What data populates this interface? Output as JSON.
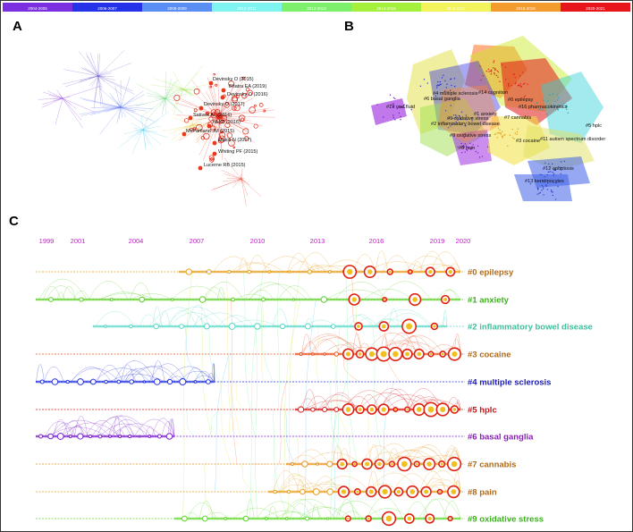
{
  "panels": {
    "a": "A",
    "b": "B",
    "c": "C"
  },
  "legend_bar": [
    {
      "label": "2004-2006",
      "color": "#7b2fe0"
    },
    {
      "label": "2006-2007",
      "color": "#2433e8"
    },
    {
      "label": "2008-2009",
      "color": "#5b8ef2"
    },
    {
      "label": "2010-2011",
      "color": "#7ff3f0"
    },
    {
      "label": "2012-2013",
      "color": "#7cf06a"
    },
    {
      "label": "2014-2015",
      "color": "#a5f03c"
    },
    {
      "label": "2016-2017",
      "color": "#f3f35c"
    },
    {
      "label": "2018-2019",
      "color": "#f39b2c"
    },
    {
      "label": "2020-2021",
      "color": "#e8151b"
    }
  ],
  "network_a": {
    "node_labels": [
      "Devinsky O (2015)",
      "Bhatra EA (2019)",
      "Devinsky O (2016)",
      "Devinsky O (2017)",
      "Sativex AL (2016)",
      "NHCI (2016)",
      "McPartland JM (2015)",
      "Maioli N (2017)",
      "Whiting PF (2015)",
      "Lucerne RB (2015)"
    ]
  },
  "network_b": {
    "clusters": [
      "#0 epilepsy",
      "#1 anxiety",
      "#2 inflammatory bowel disease",
      "#3 cocaine",
      "#4 multiple sclerosis",
      "#5 hplc",
      "#6 basal ganglia",
      "#7 cannabis",
      "#8 pain",
      "#9 oxidative stress",
      "#10 gpr55",
      "#11 autism spectrum disorder",
      "#12 apoptosis",
      "#13 keratinocytes",
      "#14 cognition",
      "#16 pharmacokinetics",
      "#17 oral fluid"
    ]
  },
  "chart_data": {
    "type": "timeline",
    "title": "",
    "years": [
      "1999",
      "2001",
      "2004",
      "2007",
      "2010",
      "2013",
      "2016",
      "2019",
      "2020"
    ],
    "clusters": [
      {
        "label": "#0 epilepsy",
        "color": "#b06a1a",
        "start": 1999,
        "end": 2020
      },
      {
        "label": "#1 anxiety",
        "color": "#3bb31d",
        "start": 1999,
        "end": 2020
      },
      {
        "label": "#2 inflammatory bowel disease",
        "color": "#3fbf9e",
        "start": 2001,
        "end": 2020
      },
      {
        "label": "#3 cocaine",
        "color": "#b06a1a",
        "start": 1999,
        "end": 2020
      },
      {
        "label": "#4 multiple sclerosis",
        "color": "#1a1ab8",
        "start": 1999,
        "end": 2020
      },
      {
        "label": "#5 hplc",
        "color": "#c2161b",
        "start": 1999,
        "end": 2020
      },
      {
        "label": "#6 basal ganglia",
        "color": "#8a1fb8",
        "start": 1999,
        "end": 2020
      },
      {
        "label": "#7 cannabis",
        "color": "#b06a1a",
        "start": 1999,
        "end": 2020
      },
      {
        "label": "#8 pain",
        "color": "#b06a1a",
        "start": 1999,
        "end": 2020
      },
      {
        "label": "#9 oxidative stress",
        "color": "#3bb31d",
        "start": 1999,
        "end": 2020
      }
    ]
  }
}
